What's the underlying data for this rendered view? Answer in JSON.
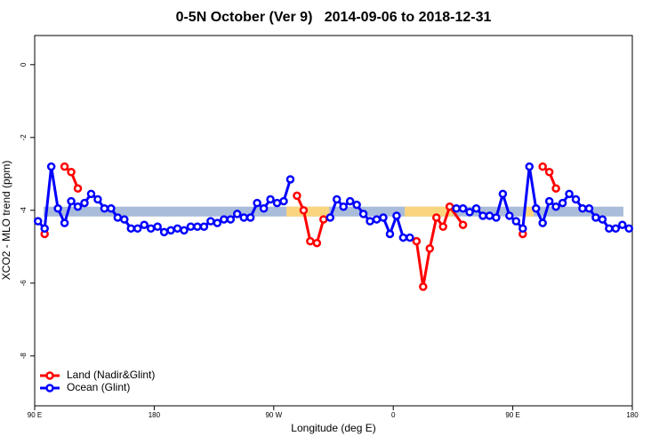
{
  "chart_data": {
    "type": "line",
    "title": "0-5N October (Ver 9)   2014-09-06 to 2018-12-31",
    "xlabel": "Longitude (deg E)",
    "ylabel": "XCO2 - MLO trend (ppm)",
    "xlim": [
      90,
      540
    ],
    "xticks": [
      {
        "value": 90,
        "label": "90 E"
      },
      180,
      {
        "value": 270,
        "label": "90 W"
      },
      {
        "value": 360,
        "label": "0"
      },
      {
        "value": 450,
        "label": "90 E"
      },
      {
        "value": 540,
        "label": "180"
      }
    ],
    "ylim": [
      -9.37,
      0.8
    ],
    "yticks": [
      0,
      -2,
      -4,
      -6,
      -8
    ],
    "legend": "bottom-left",
    "band": {
      "range": [
        -3.9,
        -4.17
      ],
      "color": "#a9bcd9",
      "highlight_color": "#fbd57e",
      "highlights": [
        [
          279.6,
          311.7
        ],
        [
          368.6,
          405.5
        ],
        [
          459,
          465.7
        ]
      ]
    },
    "series": [
      {
        "name": "Land (Nadir&Glint)",
        "color": "#ff0000",
        "x": [
          97.5,
          107.5,
          112.5,
          117.5,
          122.5,
          127.5,
          287.5,
          292.5,
          297.5,
          302.5,
          307.5,
          312.5,
          377.5,
          382.5,
          387.5,
          392.5,
          397.5,
          402.5,
          412.5,
          417.5,
          457.5,
          462.5,
          472.5,
          477.5,
          482.5
        ],
        "values": [
          -4.65,
          null,
          -2.8,
          -2.95,
          -3.4,
          null,
          -3.6,
          -4.0,
          -4.85,
          -4.9,
          -4.25,
          null,
          -4.85,
          -6.1,
          -5.05,
          -4.2,
          -4.45,
          -3.9,
          -4.4,
          null,
          -4.65,
          null,
          -2.8,
          -2.95,
          -3.4
        ]
      },
      {
        "name": "Ocean (Glint)",
        "color": "#0000ff",
        "x": [
          92.5,
          97.5,
          102.5,
          107.5,
          112.5,
          117.5,
          122.5,
          127.5,
          132.5,
          137.5,
          142.5,
          147.5,
          152.5,
          157.5,
          162.5,
          167.5,
          172.5,
          177.5,
          182.5,
          187.5,
          192.5,
          197.5,
          202.5,
          207.5,
          212.5,
          217.5,
          222.5,
          227.5,
          232.5,
          237.5,
          242.5,
          247.5,
          252.5,
          257.5,
          262.5,
          267.5,
          272.5,
          277.5,
          282.5,
          287.5,
          312.5,
          317.5,
          322.5,
          327.5,
          332.5,
          337.5,
          342.5,
          347.5,
          352.5,
          357.5,
          362.5,
          367.5,
          372.5,
          377.5,
          407.5,
          412.5,
          417.5,
          422.5,
          427.5,
          432.5,
          437.5,
          442.5,
          447.5,
          452.5,
          457.5,
          462.5,
          467.5,
          472.5,
          477.5,
          482.5,
          487.5,
          492.5,
          497.5,
          502.5,
          507.5,
          512.5,
          517.5,
          522.5,
          527.5,
          532.5,
          537.5
        ],
        "values": [
          -4.3,
          -4.5,
          -2.8,
          -3.95,
          -4.35,
          -3.75,
          -3.9,
          -3.8,
          -3.55,
          -3.7,
          -3.95,
          -3.95,
          -4.2,
          -4.25,
          -4.5,
          -4.5,
          -4.4,
          -4.5,
          -4.45,
          -4.6,
          -4.55,
          -4.5,
          -4.55,
          -4.45,
          -4.45,
          -4.45,
          -4.3,
          -4.35,
          -4.25,
          -4.25,
          -4.1,
          -4.2,
          -4.2,
          -3.8,
          -3.95,
          -3.7,
          -3.8,
          -3.75,
          -3.15,
          null,
          -4.2,
          -3.7,
          -3.9,
          -3.75,
          -3.85,
          -4.1,
          -4.3,
          -4.25,
          -4.2,
          -4.65,
          -4.15,
          -4.75,
          -4.75,
          null,
          -3.95,
          -3.95,
          -4.05,
          -3.95,
          -4.15,
          -4.15,
          -4.2,
          -3.55,
          -4.15,
          -4.3,
          -4.5,
          -2.8,
          -3.95,
          -4.35,
          -3.75,
          -3.9,
          -3.8,
          -3.55,
          -3.7,
          -3.95,
          -3.95,
          -4.2,
          -4.25,
          -4.5,
          -4.5,
          -4.4,
          -4.5
        ]
      }
    ]
  }
}
